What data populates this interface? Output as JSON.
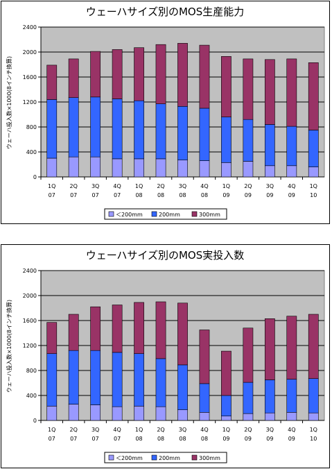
{
  "chart_data": [
    {
      "type": "bar",
      "stacked": true,
      "title": "ウェーハサイズ別のMOS生産能力",
      "ylabel": "ウェーハ投入数×1000(8インチ換算)",
      "xlabel": "",
      "ylim": [
        0,
        2400
      ],
      "yticks": [
        0,
        400,
        800,
        1200,
        1600,
        2000,
        2400
      ],
      "categories": [
        [
          "1Q",
          "07"
        ],
        [
          "2Q",
          "07"
        ],
        [
          "3Q",
          "07"
        ],
        [
          "4Q",
          "07"
        ],
        [
          "1Q",
          "08"
        ],
        [
          "2Q",
          "08"
        ],
        [
          "3Q",
          "08"
        ],
        [
          "4Q",
          "08"
        ],
        [
          "1Q",
          "09"
        ],
        [
          "2Q",
          "09"
        ],
        [
          "3Q",
          "09"
        ],
        [
          "4Q",
          "09"
        ],
        [
          "1Q",
          "10"
        ]
      ],
      "series": [
        {
          "name": "＜200mm",
          "color": "#9999ff",
          "values": [
            300,
            320,
            320,
            290,
            290,
            290,
            270,
            260,
            230,
            250,
            180,
            180,
            160
          ]
        },
        {
          "name": "200mm",
          "color": "#3366ff",
          "values": [
            940,
            950,
            960,
            960,
            930,
            880,
            860,
            840,
            730,
            670,
            660,
            630,
            590
          ]
        },
        {
          "name": "300mm",
          "color": "#993366",
          "values": [
            550,
            620,
            730,
            790,
            850,
            950,
            1010,
            1010,
            970,
            970,
            1040,
            1080,
            1080
          ]
        }
      ],
      "grid": true,
      "legend": "bottom",
      "plot_background": "#c0c0c0"
    },
    {
      "type": "bar",
      "stacked": true,
      "title": "ウェーハサイズ別のMOS実投入数",
      "ylabel": "ウェーハ投入数×1000(8インチ換算)",
      "xlabel": "",
      "ylim": [
        0,
        2400
      ],
      "yticks": [
        0,
        400,
        800,
        1200,
        1600,
        2000,
        2400
      ],
      "categories": [
        [
          "1Q",
          "07"
        ],
        [
          "2Q",
          "07"
        ],
        [
          "3Q",
          "07"
        ],
        [
          "4Q",
          "07"
        ],
        [
          "1Q",
          "08"
        ],
        [
          "2Q",
          "08"
        ],
        [
          "3Q",
          "08"
        ],
        [
          "4Q",
          "08"
        ],
        [
          "1Q",
          "09"
        ],
        [
          "2Q",
          "09"
        ],
        [
          "3Q",
          "09"
        ],
        [
          "4Q",
          "09"
        ],
        [
          "1Q",
          "10"
        ]
      ],
      "series": [
        {
          "name": "＜200mm",
          "color": "#9999ff",
          "values": [
            230,
            260,
            250,
            220,
            230,
            220,
            170,
            130,
            70,
            110,
            120,
            130,
            120
          ]
        },
        {
          "name": "200mm",
          "color": "#3366ff",
          "values": [
            840,
            860,
            870,
            870,
            840,
            770,
            720,
            460,
            330,
            500,
            530,
            530,
            550
          ]
        },
        {
          "name": "300mm",
          "color": "#993366",
          "values": [
            500,
            580,
            700,
            760,
            820,
            910,
            990,
            860,
            710,
            870,
            980,
            1010,
            1030
          ]
        }
      ],
      "grid": true,
      "legend": "bottom",
      "plot_background": "#c0c0c0"
    }
  ]
}
